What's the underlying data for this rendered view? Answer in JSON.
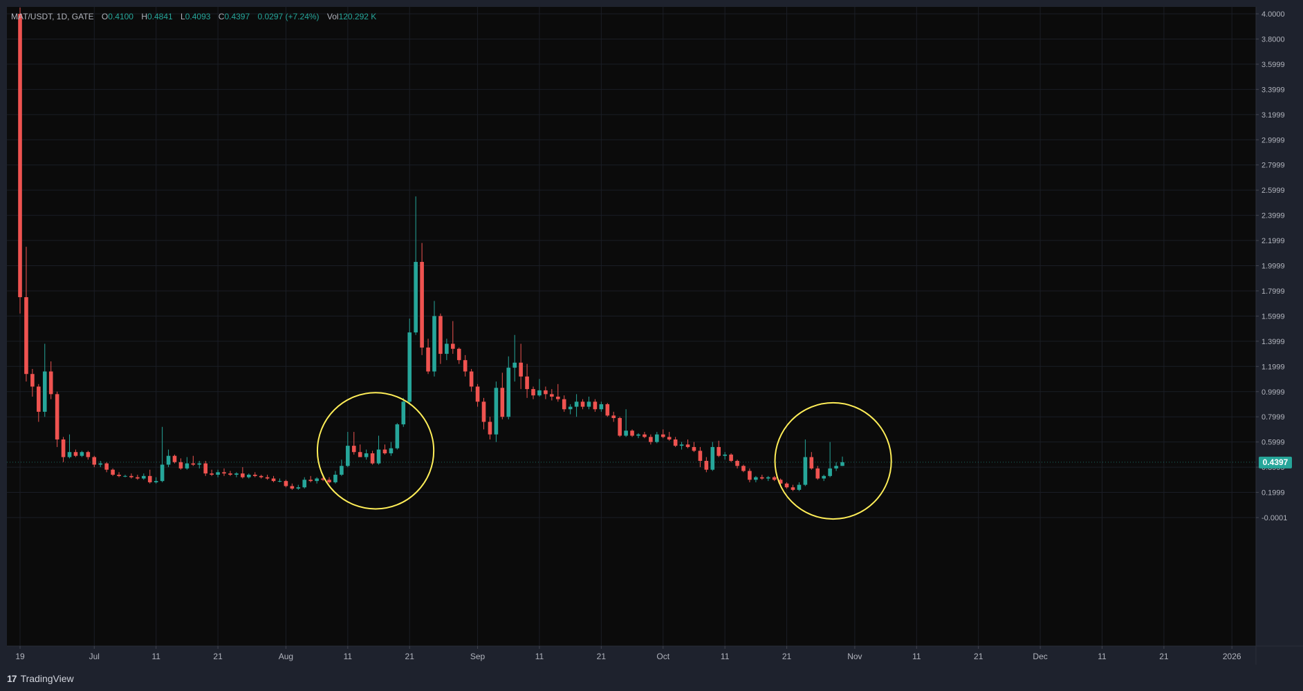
{
  "legend": {
    "symbol": "MAT/USDT, 1D, GATE",
    "o_label": "O",
    "o_value": "0.4100",
    "h_label": "H",
    "h_value": "0.4841",
    "l_label": "L",
    "l_value": "0.4093",
    "c_label": "C",
    "c_value": "0.4397",
    "change": "0.0297 (+7.24%)",
    "vol_label": "Vol",
    "vol_value": "120.292 K"
  },
  "last_price_label": "0.4397",
  "brand": "TradingView",
  "brand_logo": "tv-logo-icon",
  "colors": {
    "background": "#0b0b0b",
    "frame": "#1e222d",
    "up": "#26a69a",
    "down": "#ef5350",
    "grid": "#1b1e26",
    "text": "#b2b5be",
    "annotation": "#ffee58",
    "price_badge": "#26a69a"
  },
  "chart_data": {
    "type": "candlestick",
    "x_ticks": [
      "19",
      "Jul",
      "11",
      "21",
      "Aug",
      "11",
      "21",
      "Sep",
      "11",
      "21",
      "Oct",
      "11",
      "21",
      "Nov",
      "11",
      "21",
      "Dec",
      "11",
      "21",
      "2026"
    ],
    "y_ticks": [
      "4.0000",
      "3.8000",
      "3.5999",
      "3.3999",
      "3.1999",
      "2.9999",
      "2.7999",
      "2.5999",
      "2.3999",
      "2.1999",
      "1.9999",
      "1.7999",
      "1.5999",
      "1.3999",
      "1.1999",
      "0.9999",
      "0.7999",
      "0.5999",
      "0.3999",
      "0.1999",
      "-0.0001"
    ],
    "ylim": [
      -0.08,
      4.05
    ],
    "x_start_day": 0,
    "x_end_day": 198,
    "x_tick_days": [
      0,
      12,
      22,
      32,
      43,
      53,
      63,
      74,
      84,
      94,
      104,
      114,
      124,
      135,
      145,
      155,
      165,
      175,
      185,
      196
    ],
    "annotations": [
      {
        "type": "circle",
        "center_day": 57.5,
        "center_price": 0.53,
        "radius_days": 9.8
      },
      {
        "type": "circle",
        "center_day": 131.5,
        "center_price": 0.45,
        "radius_days": 9.8
      }
    ],
    "candles": [
      [
        4.0,
        4.05,
        1.62,
        1.75
      ],
      [
        1.75,
        2.15,
        1.08,
        1.14
      ],
      [
        1.14,
        1.18,
        0.96,
        1.04
      ],
      [
        1.04,
        1.06,
        0.76,
        0.84
      ],
      [
        0.84,
        1.38,
        0.8,
        1.16
      ],
      [
        1.16,
        1.24,
        0.94,
        0.98
      ],
      [
        0.98,
        1.0,
        0.56,
        0.62
      ],
      [
        0.62,
        0.64,
        0.44,
        0.48
      ],
      [
        0.48,
        0.66,
        0.47,
        0.52
      ],
      [
        0.52,
        0.54,
        0.48,
        0.49
      ],
      [
        0.49,
        0.53,
        0.48,
        0.52
      ],
      [
        0.52,
        0.53,
        0.46,
        0.48
      ],
      [
        0.48,
        0.49,
        0.4,
        0.42
      ],
      [
        0.42,
        0.45,
        0.4,
        0.43
      ],
      [
        0.43,
        0.44,
        0.36,
        0.38
      ],
      [
        0.38,
        0.39,
        0.33,
        0.34
      ],
      [
        0.34,
        0.36,
        0.32,
        0.33
      ],
      [
        0.33,
        0.34,
        0.32,
        0.33
      ],
      [
        0.33,
        0.35,
        0.31,
        0.32
      ],
      [
        0.32,
        0.34,
        0.3,
        0.31
      ],
      [
        0.31,
        0.35,
        0.3,
        0.33
      ],
      [
        0.33,
        0.38,
        0.27,
        0.28
      ],
      [
        0.28,
        0.32,
        0.27,
        0.29
      ],
      [
        0.29,
        0.72,
        0.28,
        0.42
      ],
      [
        0.42,
        0.54,
        0.4,
        0.49
      ],
      [
        0.49,
        0.5,
        0.43,
        0.44
      ],
      [
        0.44,
        0.47,
        0.38,
        0.39
      ],
      [
        0.39,
        0.48,
        0.38,
        0.43
      ],
      [
        0.43,
        0.49,
        0.41,
        0.42
      ],
      [
        0.42,
        0.45,
        0.39,
        0.43
      ],
      [
        0.43,
        0.45,
        0.33,
        0.35
      ],
      [
        0.35,
        0.38,
        0.33,
        0.34
      ],
      [
        0.34,
        0.38,
        0.32,
        0.36
      ],
      [
        0.36,
        0.39,
        0.33,
        0.35
      ],
      [
        0.35,
        0.37,
        0.33,
        0.34
      ],
      [
        0.34,
        0.36,
        0.32,
        0.35
      ],
      [
        0.35,
        0.4,
        0.31,
        0.32
      ],
      [
        0.32,
        0.35,
        0.31,
        0.34
      ],
      [
        0.34,
        0.36,
        0.32,
        0.33
      ],
      [
        0.33,
        0.34,
        0.31,
        0.32
      ],
      [
        0.32,
        0.34,
        0.3,
        0.31
      ],
      [
        0.31,
        0.33,
        0.28,
        0.29
      ],
      [
        0.29,
        0.31,
        0.28,
        0.29
      ],
      [
        0.29,
        0.3,
        0.24,
        0.25
      ],
      [
        0.25,
        0.27,
        0.22,
        0.23
      ],
      [
        0.23,
        0.26,
        0.22,
        0.24
      ],
      [
        0.24,
        0.32,
        0.23,
        0.3
      ],
      [
        0.3,
        0.33,
        0.28,
        0.29
      ],
      [
        0.29,
        0.32,
        0.27,
        0.31
      ],
      [
        0.31,
        0.33,
        0.29,
        0.3
      ],
      [
        0.3,
        0.32,
        0.27,
        0.28
      ],
      [
        0.28,
        0.37,
        0.27,
        0.34
      ],
      [
        0.34,
        0.46,
        0.33,
        0.41
      ],
      [
        0.41,
        0.68,
        0.4,
        0.57
      ],
      [
        0.57,
        0.68,
        0.5,
        0.52
      ],
      [
        0.52,
        0.58,
        0.48,
        0.48
      ],
      [
        0.48,
        0.54,
        0.46,
        0.51
      ],
      [
        0.51,
        0.53,
        0.42,
        0.43
      ],
      [
        0.43,
        0.65,
        0.42,
        0.54
      ],
      [
        0.54,
        0.58,
        0.5,
        0.51
      ],
      [
        0.51,
        0.6,
        0.49,
        0.55
      ],
      [
        0.55,
        0.75,
        0.54,
        0.74
      ],
      [
        0.74,
        0.95,
        0.72,
        0.92
      ],
      [
        0.92,
        1.58,
        0.9,
        1.47
      ],
      [
        1.47,
        2.55,
        1.45,
        2.03
      ],
      [
        2.03,
        2.18,
        1.29,
        1.35
      ],
      [
        1.35,
        1.42,
        1.14,
        1.16
      ],
      [
        1.16,
        1.72,
        1.12,
        1.6
      ],
      [
        1.6,
        1.62,
        1.22,
        1.3
      ],
      [
        1.3,
        1.42,
        1.25,
        1.38
      ],
      [
        1.38,
        1.56,
        1.3,
        1.34
      ],
      [
        1.34,
        1.35,
        1.22,
        1.25
      ],
      [
        1.25,
        1.29,
        1.12,
        1.16
      ],
      [
        1.16,
        1.18,
        1.0,
        1.04
      ],
      [
        1.04,
        1.06,
        0.88,
        0.92
      ],
      [
        0.92,
        0.95,
        0.7,
        0.76
      ],
      [
        0.76,
        0.8,
        0.62,
        0.66
      ],
      [
        0.66,
        1.08,
        0.6,
        1.03
      ],
      [
        1.03,
        1.15,
        0.78,
        0.8
      ],
      [
        0.8,
        1.28,
        0.78,
        1.19
      ],
      [
        1.19,
        1.45,
        1.08,
        1.23
      ],
      [
        1.23,
        1.38,
        1.02,
        1.12
      ],
      [
        1.12,
        1.22,
        0.95,
        1.02
      ],
      [
        1.02,
        1.04,
        0.94,
        0.97
      ],
      [
        0.97,
        1.1,
        0.96,
        1.01
      ],
      [
        1.01,
        1.04,
        0.94,
        0.98
      ],
      [
        0.98,
        1.02,
        0.93,
        0.96
      ],
      [
        0.96,
        1.06,
        0.92,
        0.94
      ],
      [
        0.94,
        0.97,
        0.84,
        0.86
      ],
      [
        0.86,
        0.9,
        0.82,
        0.88
      ],
      [
        0.88,
        0.98,
        0.8,
        0.92
      ],
      [
        0.92,
        0.94,
        0.86,
        0.88
      ],
      [
        0.88,
        0.96,
        0.86,
        0.92
      ],
      [
        0.92,
        0.94,
        0.84,
        0.86
      ],
      [
        0.86,
        0.92,
        0.84,
        0.9
      ],
      [
        0.9,
        0.91,
        0.8,
        0.81
      ],
      [
        0.81,
        0.84,
        0.76,
        0.79
      ],
      [
        0.79,
        0.8,
        0.64,
        0.65
      ],
      [
        0.65,
        0.86,
        0.64,
        0.69
      ],
      [
        0.69,
        0.7,
        0.64,
        0.65
      ],
      [
        0.65,
        0.67,
        0.63,
        0.66
      ],
      [
        0.66,
        0.68,
        0.63,
        0.64
      ],
      [
        0.64,
        0.66,
        0.58,
        0.6
      ],
      [
        0.6,
        0.68,
        0.59,
        0.66
      ],
      [
        0.66,
        0.7,
        0.63,
        0.64
      ],
      [
        0.64,
        0.68,
        0.61,
        0.62
      ],
      [
        0.62,
        0.64,
        0.56,
        0.57
      ],
      [
        0.57,
        0.6,
        0.54,
        0.58
      ],
      [
        0.58,
        0.62,
        0.55,
        0.56
      ],
      [
        0.56,
        0.6,
        0.52,
        0.53
      ],
      [
        0.53,
        0.56,
        0.4,
        0.45
      ],
      [
        0.45,
        0.48,
        0.36,
        0.38
      ],
      [
        0.38,
        0.6,
        0.37,
        0.56
      ],
      [
        0.56,
        0.61,
        0.48,
        0.49
      ],
      [
        0.49,
        0.52,
        0.46,
        0.5
      ],
      [
        0.5,
        0.51,
        0.44,
        0.45
      ],
      [
        0.45,
        0.46,
        0.39,
        0.41
      ],
      [
        0.41,
        0.42,
        0.36,
        0.37
      ],
      [
        0.37,
        0.39,
        0.28,
        0.3
      ],
      [
        0.3,
        0.33,
        0.28,
        0.32
      ],
      [
        0.32,
        0.34,
        0.3,
        0.31
      ],
      [
        0.31,
        0.33,
        0.29,
        0.32
      ],
      [
        0.32,
        0.33,
        0.29,
        0.3
      ],
      [
        0.3,
        0.31,
        0.26,
        0.27
      ],
      [
        0.27,
        0.28,
        0.23,
        0.24
      ],
      [
        0.24,
        0.26,
        0.21,
        0.22
      ],
      [
        0.22,
        0.28,
        0.21,
        0.26
      ],
      [
        0.26,
        0.62,
        0.25,
        0.48
      ],
      [
        0.48,
        0.52,
        0.38,
        0.39
      ],
      [
        0.39,
        0.41,
        0.3,
        0.31
      ],
      [
        0.31,
        0.34,
        0.29,
        0.33
      ],
      [
        0.33,
        0.6,
        0.32,
        0.39
      ],
      [
        0.39,
        0.44,
        0.37,
        0.41
      ],
      [
        0.41,
        0.4841,
        0.4093,
        0.4397
      ]
    ]
  }
}
